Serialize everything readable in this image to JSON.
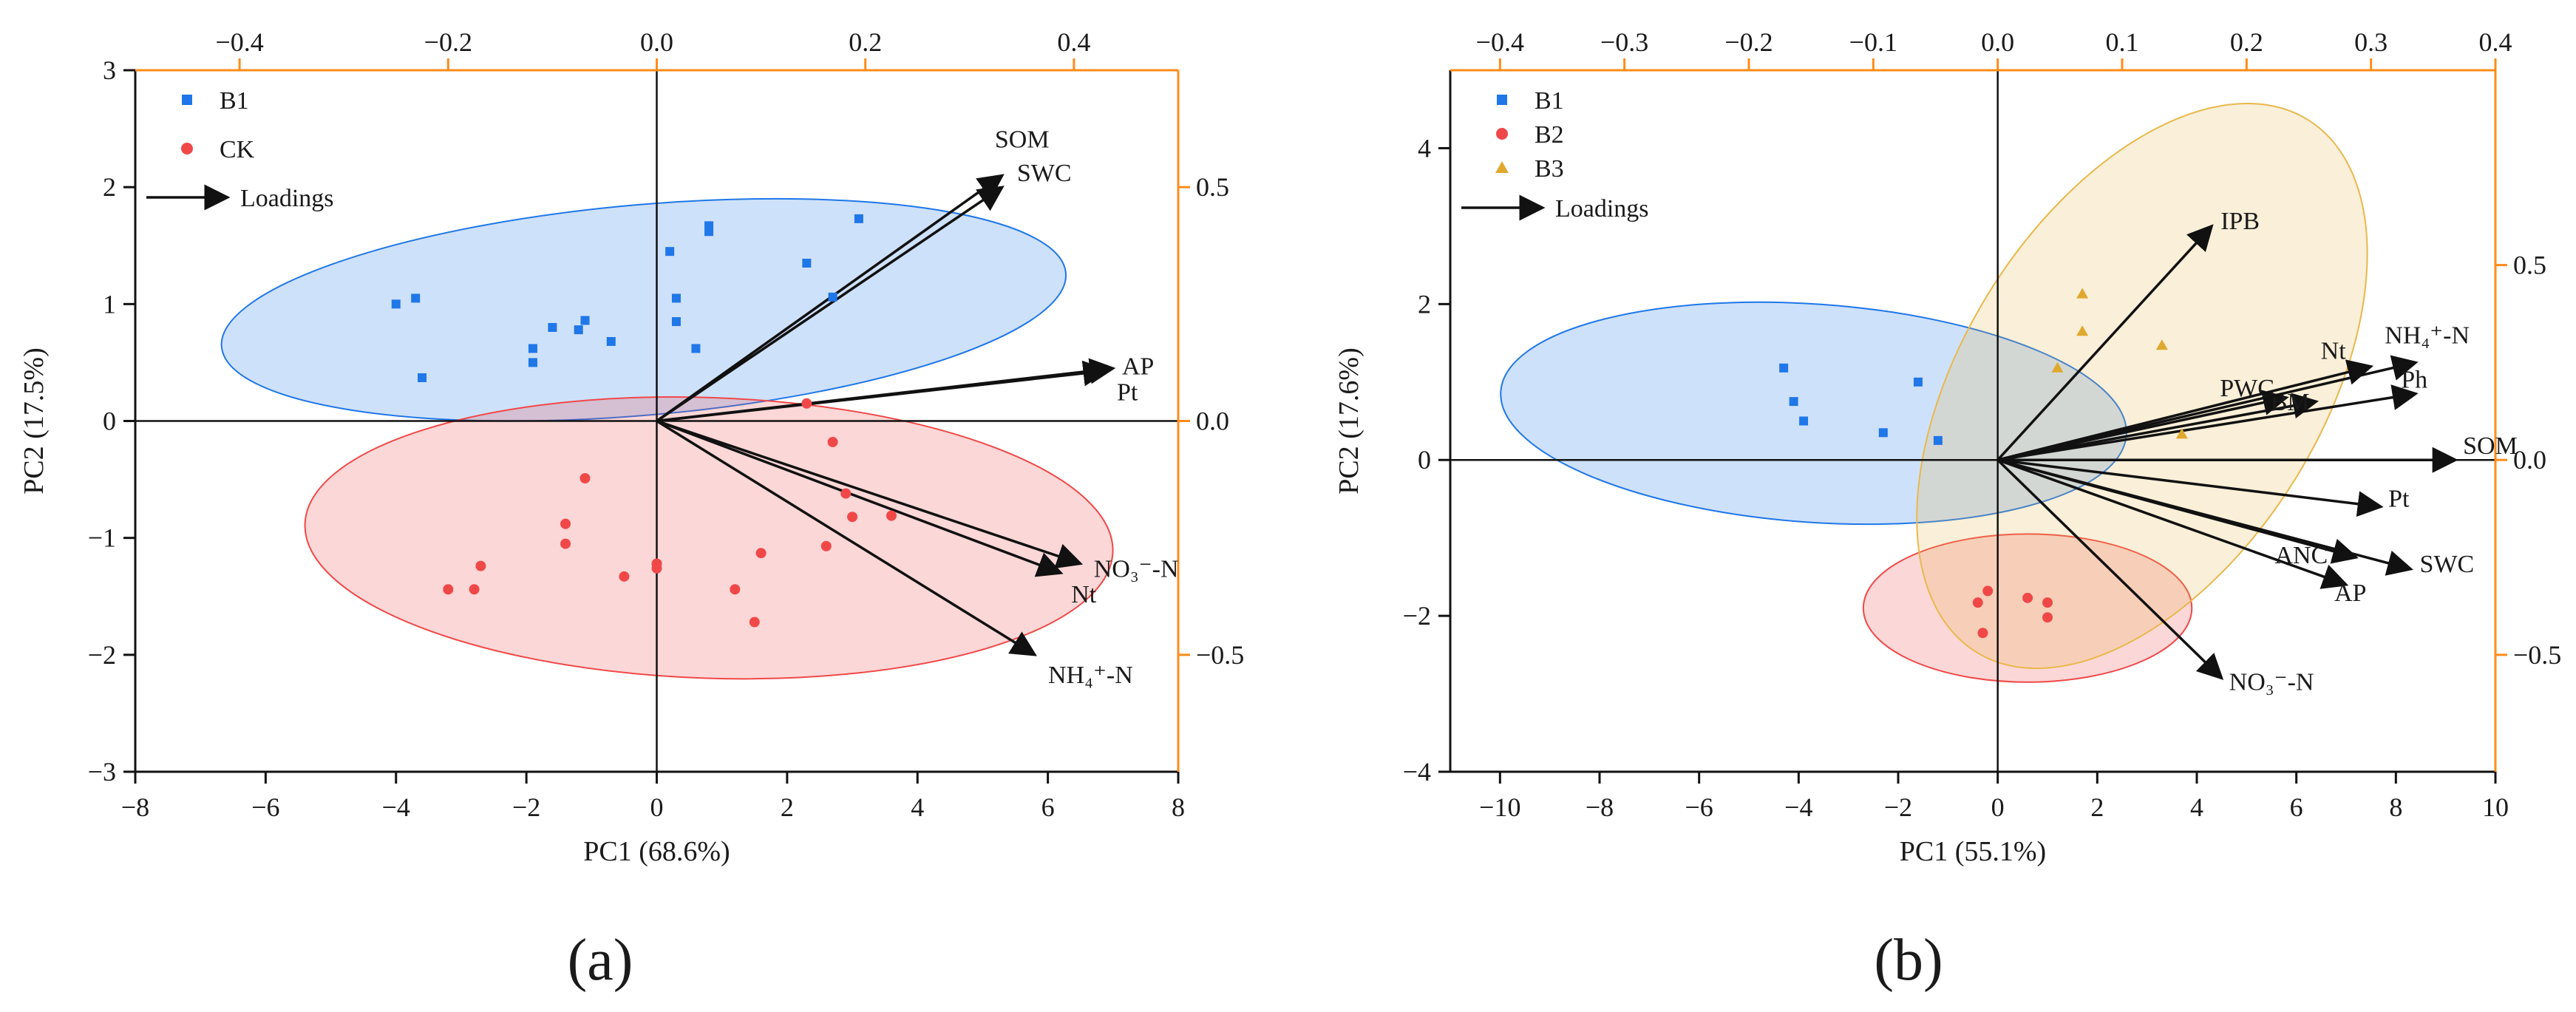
{
  "chart_data": [
    {
      "panel_label": "(a)",
      "type": "scatter",
      "xlabel": "PC1 (68.6%)",
      "ylabel": "PC2 (17.5%)",
      "xlim": [
        -8,
        8
      ],
      "ylim": [
        -3,
        3
      ],
      "x_ticks": [
        -8,
        -6,
        -4,
        -2,
        0,
        2,
        4,
        6,
        8
      ],
      "y_ticks": [
        -3,
        -2,
        -1,
        0,
        1,
        2,
        3
      ],
      "top_xlim": [
        -0.5,
        0.5
      ],
      "top_ticks": [
        -0.4,
        -0.2,
        0.0,
        0.2,
        0.4
      ],
      "top_tick_labels": [
        "−0.4",
        "−0.2",
        "0.0",
        "0.2",
        "0.4"
      ],
      "right_ylim": [
        -0.75,
        0.75
      ],
      "right_ticks": [
        -0.5,
        0.0,
        0.5
      ],
      "right_tick_labels": [
        "−0.5",
        "0.0",
        "0.5"
      ],
      "secondary_axis_color": "#FF8C1A",
      "legend": {
        "placement": "top-left",
        "entries": [
          {
            "label": "B1",
            "marker": "square",
            "color": "#1F77E8"
          },
          {
            "label": "CK",
            "marker": "circle",
            "color": "#F04848"
          }
        ],
        "loadings_label": "Loadings"
      },
      "series": [
        {
          "name": "B1",
          "marker": "square",
          "color": "#1F77E8",
          "points": [
            [
              -4.0,
              1.0
            ],
            [
              -3.7,
              1.05
            ],
            [
              -3.6,
              0.37
            ],
            [
              -1.9,
              0.62
            ],
            [
              -1.9,
              0.5
            ],
            [
              -1.6,
              0.8
            ],
            [
              -1.2,
              0.78
            ],
            [
              -1.1,
              0.86
            ],
            [
              -0.7,
              0.68
            ],
            [
              0.2,
              1.45
            ],
            [
              0.3,
              1.05
            ],
            [
              0.3,
              0.85
            ],
            [
              0.6,
              0.62
            ],
            [
              0.8,
              1.62
            ],
            [
              0.8,
              1.67
            ],
            [
              2.3,
              1.35
            ],
            [
              2.7,
              1.06
            ],
            [
              3.1,
              1.73
            ]
          ]
        },
        {
          "name": "CK",
          "marker": "circle",
          "color": "#F04848",
          "points": [
            [
              -3.2,
              -1.44
            ],
            [
              -2.8,
              -1.44
            ],
            [
              -2.7,
              -1.24
            ],
            [
              -1.4,
              -0.88
            ],
            [
              -1.4,
              -1.05
            ],
            [
              -1.1,
              -0.49
            ],
            [
              -0.5,
              -1.33
            ],
            [
              0.0,
              -1.22
            ],
            [
              0.0,
              -1.26
            ],
            [
              1.2,
              -1.44
            ],
            [
              1.5,
              -1.72
            ],
            [
              1.6,
              -1.13
            ],
            [
              2.3,
              0.15
            ],
            [
              2.6,
              -1.07
            ],
            [
              2.7,
              -0.18
            ],
            [
              2.9,
              -0.62
            ],
            [
              3.0,
              -0.82
            ],
            [
              3.6,
              -0.81
            ]
          ]
        }
      ],
      "ellipses": [
        {
          "name": "B1",
          "cx": -0.2,
          "cy": 0.95,
          "rx": 6.5,
          "ry": 0.9,
          "angle_deg": 5,
          "color": "#1F77E8"
        },
        {
          "name": "CK",
          "cx": 0.8,
          "cy": -1.0,
          "rx": 6.2,
          "ry": 1.2,
          "angle_deg": -2,
          "color": "#F04848"
        }
      ],
      "loadings": [
        {
          "label": "SOM",
          "x": 5.3,
          "y": 2.1
        },
        {
          "label": "SWC",
          "x": 5.3,
          "y": 2.0
        },
        {
          "label": "AP",
          "x": 7.0,
          "y": 0.45
        },
        {
          "label": "Pt",
          "x": 6.9,
          "y": 0.43
        },
        {
          "label": "NO₃⁻-N",
          "x": 6.5,
          "y": -1.22
        },
        {
          "label": "Nt",
          "x": 6.2,
          "y": -1.3
        },
        {
          "label": "NH₄⁺-N",
          "x": 5.8,
          "y": -2.0
        }
      ]
    },
    {
      "panel_label": "(b)",
      "type": "scatter",
      "xlabel": "PC1 (55.1%)",
      "ylabel": "PC2 (17.6%)",
      "xlim": [
        -11,
        10
      ],
      "ylim": [
        -4,
        5
      ],
      "x_ticks": [
        -10,
        -8,
        -6,
        -4,
        -2,
        0,
        2,
        4,
        6,
        8,
        10
      ],
      "y_ticks": [
        -4,
        -2,
        0,
        2,
        4
      ],
      "top_xlim": [
        -0.44,
        0.4
      ],
      "top_ticks": [
        -0.4,
        -0.3,
        -0.2,
        -0.1,
        0.0,
        0.1,
        0.2,
        0.3,
        0.4
      ],
      "top_tick_labels": [
        "−0.4",
        "−0.3",
        "−0.2",
        "−0.1",
        "0.0",
        "0.1",
        "0.2",
        "0.3",
        "0.4"
      ],
      "right_ylim": [
        -0.8,
        1.0
      ],
      "right_ticks": [
        -0.5,
        0.0,
        0.5
      ],
      "right_tick_labels": [
        "−0.5",
        "0.0",
        "0.5"
      ],
      "secondary_axis_color": "#FF8C1A",
      "legend": {
        "placement": "top-left",
        "entries": [
          {
            "label": "B1",
            "marker": "square",
            "color": "#1F77E8"
          },
          {
            "label": "B2",
            "marker": "circle",
            "color": "#F04848"
          },
          {
            "label": "B3",
            "marker": "triangle",
            "color": "#E0A82E"
          }
        ],
        "loadings_label": "Loadings"
      },
      "series": [
        {
          "name": "B1",
          "marker": "square",
          "color": "#1F77E8",
          "points": [
            [
              -4.3,
              1.18
            ],
            [
              -4.1,
              0.75
            ],
            [
              -3.9,
              0.5
            ],
            [
              -2.3,
              0.35
            ],
            [
              -1.6,
              1.0
            ],
            [
              -1.2,
              0.25
            ]
          ]
        },
        {
          "name": "B2",
          "marker": "circle",
          "color": "#F04848",
          "points": [
            [
              -0.4,
              -1.83
            ],
            [
              -0.2,
              -1.68
            ],
            [
              -0.3,
              -2.22
            ],
            [
              0.6,
              -1.77
            ],
            [
              1.0,
              -1.83
            ],
            [
              1.0,
              -2.02
            ]
          ]
        },
        {
          "name": "B3",
          "marker": "triangle",
          "color": "#E0A82E",
          "points": [
            [
              1.7,
              2.13
            ],
            [
              1.7,
              1.65
            ],
            [
              1.2,
              1.18
            ],
            [
              3.3,
              1.47
            ],
            [
              3.7,
              0.33
            ]
          ]
        }
      ],
      "ellipses": [
        {
          "name": "B1",
          "cx": -3.7,
          "cy": 0.6,
          "rx": 6.3,
          "ry": 1.4,
          "angle_deg": -4,
          "color": "#1F77E8"
        },
        {
          "name": "B2",
          "cx": 0.6,
          "cy": -1.9,
          "rx": 3.3,
          "ry": 0.95,
          "angle_deg": 0,
          "color": "#F04848"
        },
        {
          "name": "B3",
          "cx": 2.9,
          "cy": 0.95,
          "rx": 6.3,
          "ry": 2.3,
          "angle_deg": 58,
          "color": "#E8B84C"
        }
      ],
      "loadings": [
        {
          "label": "IPB",
          "x": 4.3,
          "y": 3.0
        },
        {
          "label": "PWC",
          "x": 5.8,
          "y": 0.8
        },
        {
          "label": "Nt",
          "x": 7.5,
          "y": 1.2
        },
        {
          "label": "BM",
          "x": 6.4,
          "y": 0.75
        },
        {
          "label": "NH₄⁺-N",
          "x": 8.4,
          "y": 1.25
        },
        {
          "label": "Ph",
          "x": 8.4,
          "y": 0.85
        },
        {
          "label": "SOM",
          "x": 9.2,
          "y": 0.0
        },
        {
          "label": "Pt",
          "x": 7.7,
          "y": -0.6
        },
        {
          "label": "ANC",
          "x": 7.2,
          "y": -1.25
        },
        {
          "label": "SWC",
          "x": 8.3,
          "y": -1.4
        },
        {
          "label": "AP",
          "x": 7.0,
          "y": -1.6
        },
        {
          "label": "NO₃⁻-N",
          "x": 4.5,
          "y": -2.8
        }
      ]
    }
  ]
}
